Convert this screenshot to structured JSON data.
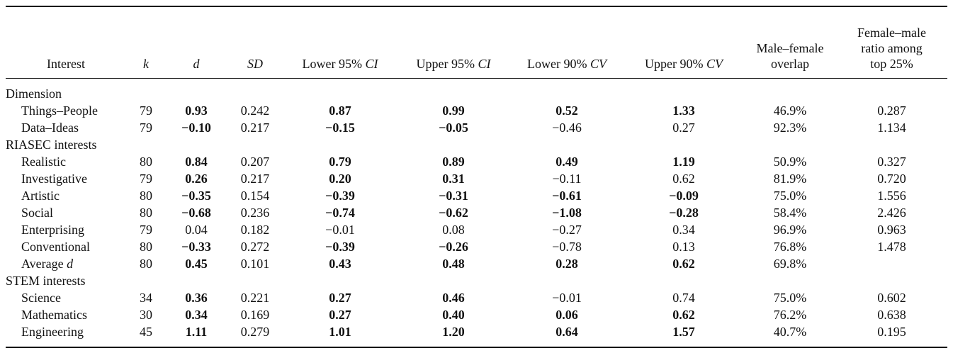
{
  "headers": [
    {
      "text": "Interest",
      "italic": ""
    },
    {
      "text": "",
      "italic": "k"
    },
    {
      "text": "",
      "italic": "d"
    },
    {
      "text": "",
      "italic": "SD"
    },
    {
      "text": "Lower 95% ",
      "italic": "CI"
    },
    {
      "text": "Upper 95% ",
      "italic": "CI"
    },
    {
      "text": "Lower 90% ",
      "italic": "CV"
    },
    {
      "text": "Upper 90% ",
      "italic": "CV"
    },
    {
      "line1": "Male–female",
      "line2": "overlap"
    },
    {
      "line1": "Female–male",
      "line2": "ratio among",
      "line3": "top 25%"
    }
  ],
  "sections": [
    {
      "title": "Dimension",
      "rows": [
        {
          "label": "Things–People",
          "k": "79",
          "d": "0.93",
          "sd": "0.242",
          "l95": "0.87",
          "u95": "0.99",
          "l90": "0.52",
          "u90": "1.33",
          "overlap": "46.9%",
          "ratio": "0.287",
          "bold": [
            true,
            true,
            true,
            true,
            true
          ]
        },
        {
          "label": "Data–Ideas",
          "k": "79",
          "d": "−0.10",
          "sd": "0.217",
          "l95": "−0.15",
          "u95": "−0.05",
          "l90": "−0.46",
          "u90": "0.27",
          "overlap": "92.3%",
          "ratio": "1.134",
          "bold": [
            true,
            true,
            true,
            false,
            false
          ]
        }
      ]
    },
    {
      "title": "RIASEC interests",
      "rows": [
        {
          "label": "Realistic",
          "k": "80",
          "d": "0.84",
          "sd": "0.207",
          "l95": "0.79",
          "u95": "0.89",
          "l90": "0.49",
          "u90": "1.19",
          "overlap": "50.9%",
          "ratio": "0.327",
          "bold": [
            true,
            true,
            true,
            true,
            true
          ]
        },
        {
          "label": "Investigative",
          "k": "79",
          "d": "0.26",
          "sd": "0.217",
          "l95": "0.20",
          "u95": "0.31",
          "l90": "−0.11",
          "u90": "0.62",
          "overlap": "81.9%",
          "ratio": "0.720",
          "bold": [
            true,
            true,
            true,
            false,
            false
          ]
        },
        {
          "label": "Artistic",
          "k": "80",
          "d": "−0.35",
          "sd": "0.154",
          "l95": "−0.39",
          "u95": "−0.31",
          "l90": "−0.61",
          "u90": "−0.09",
          "overlap": "75.0%",
          "ratio": "1.556",
          "bold": [
            true,
            true,
            true,
            true,
            true
          ]
        },
        {
          "label": "Social",
          "k": "80",
          "d": "−0.68",
          "sd": "0.236",
          "l95": "−0.74",
          "u95": "−0.62",
          "l90": "−1.08",
          "u90": "−0.28",
          "overlap": "58.4%",
          "ratio": "2.426",
          "bold": [
            true,
            true,
            true,
            true,
            true
          ]
        },
        {
          "label": "Enterprising",
          "k": "79",
          "d": "0.04",
          "sd": "0.182",
          "l95": "−0.01",
          "u95": "0.08",
          "l90": "−0.27",
          "u90": "0.34",
          "overlap": "96.9%",
          "ratio": "0.963",
          "bold": [
            false,
            false,
            false,
            false,
            false
          ]
        },
        {
          "label": "Conventional",
          "k": "80",
          "d": "−0.33",
          "sd": "0.272",
          "l95": "−0.39",
          "u95": "−0.26",
          "l90": "−0.78",
          "u90": "0.13",
          "overlap": "76.8%",
          "ratio": "1.478",
          "bold": [
            true,
            true,
            true,
            false,
            false
          ]
        },
        {
          "label": "Average ",
          "label_italic": "d",
          "k": "80",
          "d": "0.45",
          "sd": "0.101",
          "l95": "0.43",
          "u95": "0.48",
          "l90": "0.28",
          "u90": "0.62",
          "overlap": "69.8%",
          "ratio": "",
          "bold": [
            true,
            true,
            true,
            true,
            true
          ]
        }
      ]
    },
    {
      "title": "STEM interests",
      "rows": [
        {
          "label": "Science",
          "k": "34",
          "d": "0.36",
          "sd": "0.221",
          "l95": "0.27",
          "u95": "0.46",
          "l90": "−0.01",
          "u90": "0.74",
          "overlap": "75.0%",
          "ratio": "0.602",
          "bold": [
            true,
            true,
            true,
            false,
            false
          ]
        },
        {
          "label": "Mathematics",
          "k": "30",
          "d": "0.34",
          "sd": "0.169",
          "l95": "0.27",
          "u95": "0.40",
          "l90": "0.06",
          "u90": "0.62",
          "overlap": "76.2%",
          "ratio": "0.638",
          "bold": [
            true,
            true,
            true,
            true,
            true
          ]
        },
        {
          "label": "Engineering",
          "k": "45",
          "d": "1.11",
          "sd": "0.279",
          "l95": "1.01",
          "u95": "1.20",
          "l90": "0.64",
          "u90": "1.57",
          "overlap": "40.7%",
          "ratio": "0.195",
          "bold": [
            true,
            true,
            true,
            true,
            true
          ]
        }
      ]
    }
  ]
}
